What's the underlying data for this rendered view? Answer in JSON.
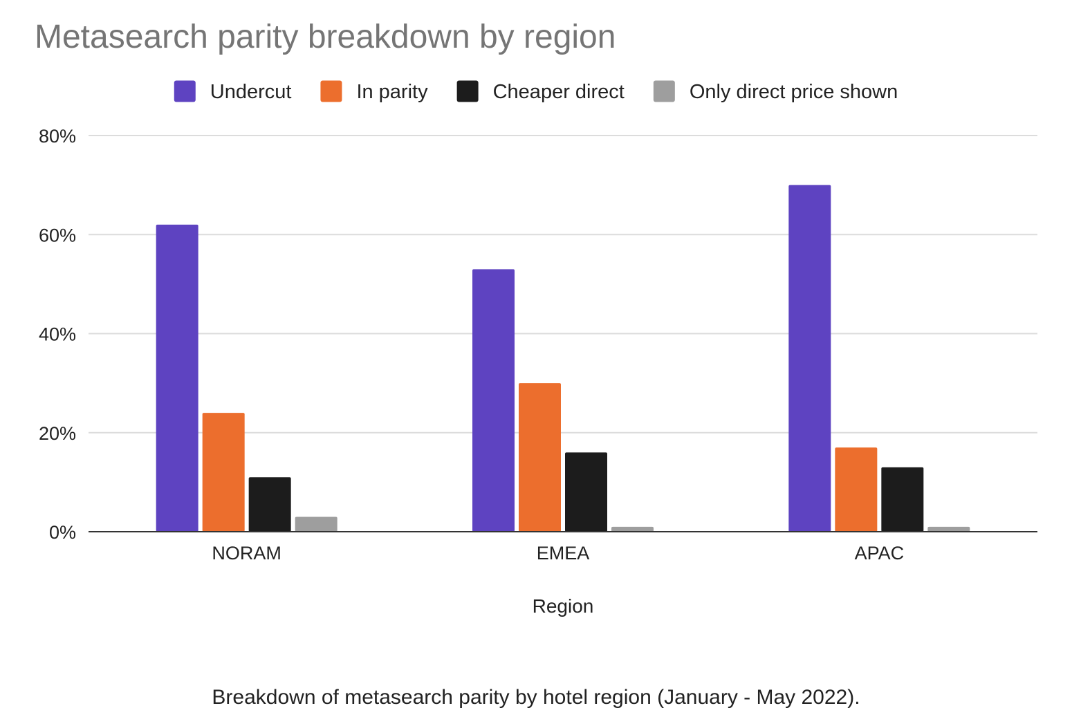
{
  "chart_data": {
    "type": "bar",
    "title": "Metasearch parity breakdown by region",
    "xlabel": "Region",
    "ylabel": "",
    "categories": [
      "NORAM",
      "EMEA",
      "APAC"
    ],
    "series": [
      {
        "name": "Undercut",
        "color": "#5e43c1",
        "values": [
          62,
          53,
          70
        ]
      },
      {
        "name": "In parity",
        "color": "#ec6e2d",
        "values": [
          24,
          30,
          17
        ]
      },
      {
        "name": "Cheaper direct",
        "color": "#1c1c1c",
        "values": [
          11,
          16,
          13
        ]
      },
      {
        "name": "Only direct price shown",
        "color": "#9e9e9e",
        "values": [
          3,
          1,
          1
        ]
      }
    ],
    "ylim": [
      0,
      80
    ],
    "yticks": [
      "0%",
      "20%",
      "40%",
      "60%",
      "80%"
    ],
    "grid": true,
    "legend_position": "top"
  },
  "caption": "Breakdown of metasearch parity by hotel region (January - May 2022)."
}
